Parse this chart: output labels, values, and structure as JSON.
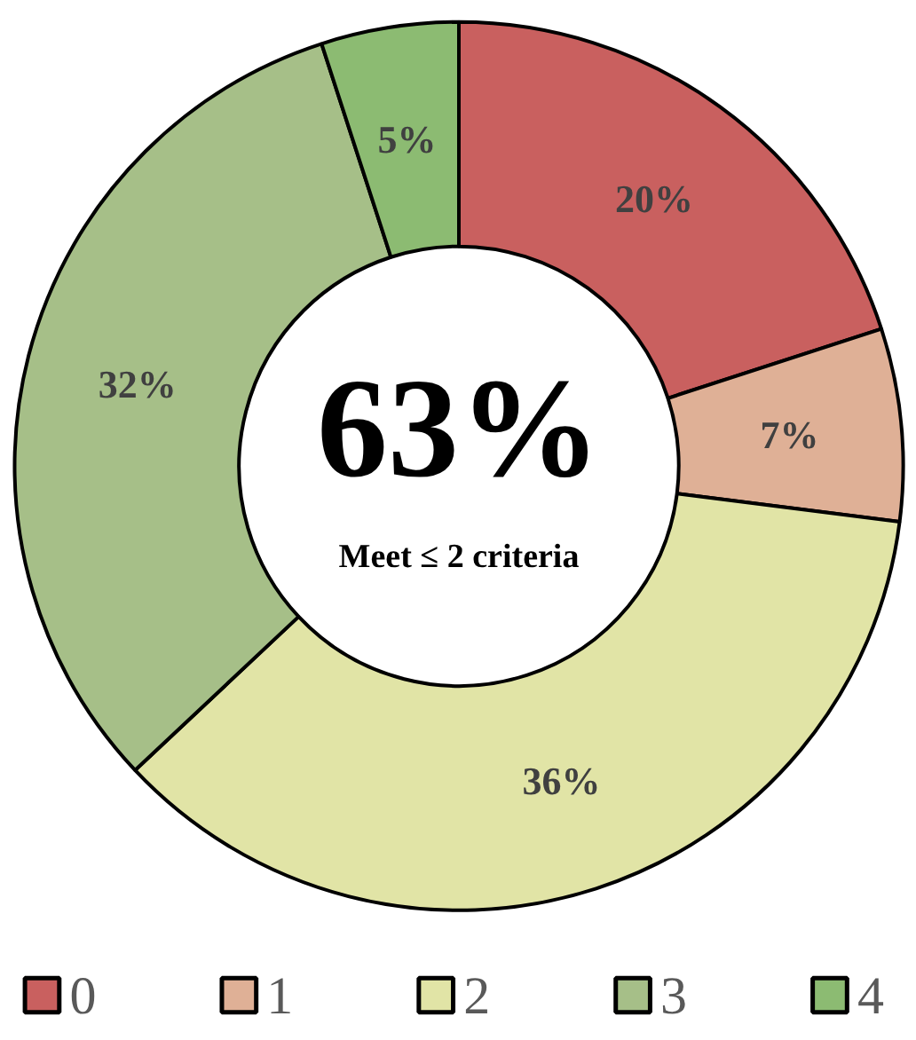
{
  "chart_data": {
    "type": "donut",
    "categories": [
      "0",
      "1",
      "2",
      "3",
      "4"
    ],
    "values": [
      20,
      7,
      36,
      32,
      5
    ],
    "colors": [
      "#c9605f",
      "#dfb096",
      "#e1e4a6",
      "#a6bf88",
      "#8cbb72"
    ],
    "value_labels": [
      "20%",
      "7%",
      "36%",
      "32%",
      "5%"
    ],
    "annotations": [
      "63%",
      "Meet ≤ 2 criteria"
    ],
    "legend": "bottom"
  }
}
